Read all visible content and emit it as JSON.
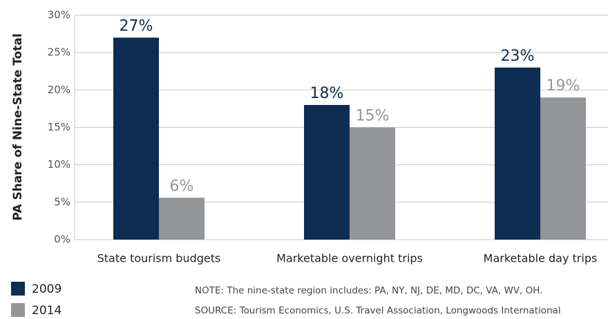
{
  "chart_data": {
    "type": "bar",
    "y_label": "PA Share of Nine-State Total",
    "categories": [
      "State tourism budgets",
      "Marketable overnight trips",
      "Marketable day trips"
    ],
    "series": [
      {
        "name": "2009",
        "color": "#0d2d52",
        "values": [
          27,
          18,
          23
        ],
        "value_labels": [
          "27%",
          "18%",
          "23%"
        ]
      },
      {
        "name": "2014",
        "color": "#939598",
        "values": [
          5.6,
          15,
          19
        ],
        "value_labels": [
          "6%",
          "15%",
          "19%"
        ]
      }
    ],
    "ylim": [
      0,
      30
    ],
    "yticks": [
      {
        "value": 0,
        "label": "0%"
      },
      {
        "value": 5,
        "label": "5%"
      },
      {
        "value": 10,
        "label": "10%"
      },
      {
        "value": 15,
        "label": "15%"
      },
      {
        "value": 20,
        "label": "20%"
      },
      {
        "value": 25,
        "label": "25%"
      },
      {
        "value": 30,
        "label": "30%"
      }
    ],
    "grid": true,
    "notes": [
      "NOTE: The nine-state region includes: PA, NY, NJ, DE, MD, DC, VA, WV, OH.",
      "SOURCE: Tourism Economics, U.S. Travel Association, Longwoods International"
    ]
  }
}
